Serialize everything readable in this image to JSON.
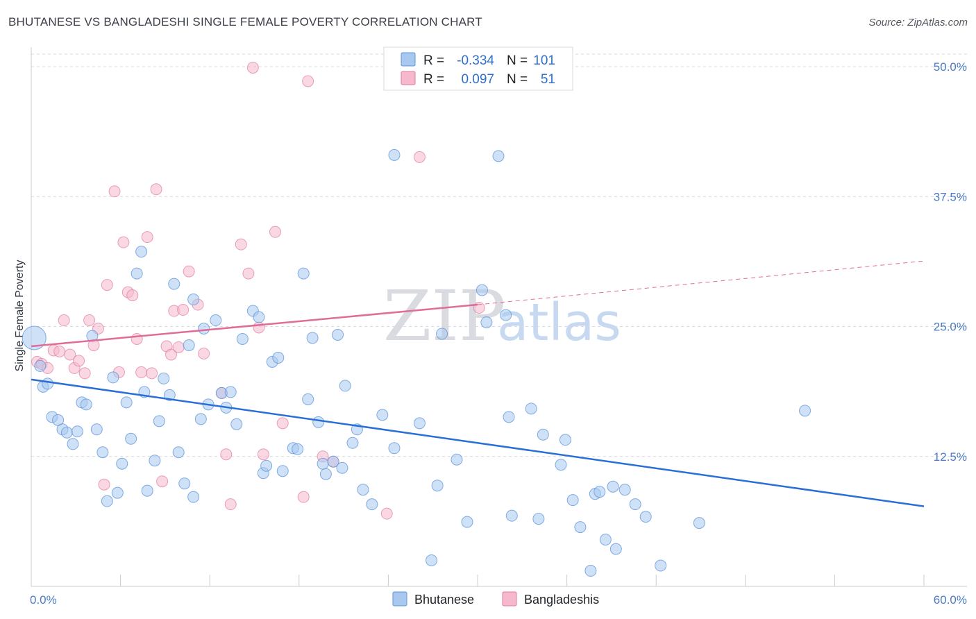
{
  "title": "BHUTANESE VS BANGLADESHI SINGLE FEMALE POVERTY CORRELATION CHART",
  "source": "Source: ZipAtlas.com",
  "watermark": {
    "part1": "ZIP",
    "part2": "atlas"
  },
  "legend": {
    "r_label": "R =",
    "n_label": "N =",
    "rows": [
      {
        "r": "-0.334",
        "n": "101",
        "color": "#a8c8f0"
      },
      {
        "r": "0.097",
        "n": "51",
        "color": "#f5b8cc"
      }
    ]
  },
  "bottom_legend": [
    "Bhutanese",
    "Bangladeshis"
  ],
  "colors": {
    "blue_fill": "#a8c8f0",
    "blue_stroke": "#5b93d8",
    "blue_line": "#2a6fd6",
    "pink_fill": "#f5b8cc",
    "pink_stroke": "#e07aa0",
    "pink_line": "#e06c98",
    "tick": "#4a7cc7",
    "grid": "#d5d8dd"
  },
  "chart_data": {
    "type": "scatter",
    "title": "BHUTANESE VS BANGLADESHI SINGLE FEMALE POVERTY CORRELATION CHART",
    "xlabel": "",
    "ylabel": "Single Female Poverty",
    "xlim": [
      0,
      60
    ],
    "ylim": [
      0,
      50
    ],
    "x_ticks": [
      "0.0%",
      "60.0%"
    ],
    "y_ticks": [
      "12.5%",
      "25.0%",
      "37.5%",
      "50.0%"
    ],
    "y_tick_values": [
      12.5,
      25.0,
      37.5,
      50.0
    ],
    "grid": true,
    "legend_position": "top-center",
    "series": [
      {
        "name": "Bhutanese",
        "r": -0.334,
        "n": 101,
        "trend": {
          "x": [
            0,
            60
          ],
          "y": [
            19.9,
            7.7
          ]
        },
        "points": [
          [
            0.2,
            23.9
          ],
          [
            0.6,
            21.2
          ],
          [
            0.8,
            19.2
          ],
          [
            1.1,
            19.5
          ],
          [
            1.4,
            16.3
          ],
          [
            1.8,
            16.0
          ],
          [
            2.1,
            15.1
          ],
          [
            2.4,
            14.8
          ],
          [
            2.8,
            13.7
          ],
          [
            3.1,
            14.9
          ],
          [
            3.4,
            17.7
          ],
          [
            3.7,
            17.5
          ],
          [
            4.1,
            24.1
          ],
          [
            4.4,
            15.1
          ],
          [
            4.8,
            12.9
          ],
          [
            5.1,
            8.2
          ],
          [
            5.5,
            20.1
          ],
          [
            5.8,
            9.0
          ],
          [
            6.1,
            11.8
          ],
          [
            6.4,
            17.7
          ],
          [
            6.7,
            14.2
          ],
          [
            7.1,
            30.1
          ],
          [
            7.4,
            32.2
          ],
          [
            7.6,
            18.7
          ],
          [
            7.8,
            9.2
          ],
          [
            8.3,
            12.1
          ],
          [
            8.6,
            15.9
          ],
          [
            8.9,
            20.0
          ],
          [
            9.3,
            18.4
          ],
          [
            9.6,
            29.1
          ],
          [
            9.9,
            12.9
          ],
          [
            10.3,
            9.9
          ],
          [
            10.6,
            23.2
          ],
          [
            10.9,
            27.6
          ],
          [
            10.9,
            8.6
          ],
          [
            11.4,
            16.1
          ],
          [
            11.6,
            24.8
          ],
          [
            11.9,
            17.5
          ],
          [
            12.4,
            25.6
          ],
          [
            12.8,
            18.6
          ],
          [
            13.1,
            17.2
          ],
          [
            13.4,
            18.7
          ],
          [
            13.8,
            15.6
          ],
          [
            14.2,
            23.8
          ],
          [
            14.9,
            26.5
          ],
          [
            15.3,
            25.9
          ],
          [
            15.6,
            10.9
          ],
          [
            15.8,
            11.6
          ],
          [
            16.2,
            21.6
          ],
          [
            16.6,
            22.0
          ],
          [
            16.9,
            11.1
          ],
          [
            17.6,
            13.3
          ],
          [
            17.9,
            13.2
          ],
          [
            18.3,
            30.1
          ],
          [
            18.6,
            18.0
          ],
          [
            18.9,
            23.9
          ],
          [
            19.3,
            15.8
          ],
          [
            19.6,
            11.8
          ],
          [
            19.8,
            10.8
          ],
          [
            20.3,
            12.0
          ],
          [
            20.6,
            24.2
          ],
          [
            20.9,
            11.4
          ],
          [
            21.1,
            19.3
          ],
          [
            21.6,
            13.8
          ],
          [
            21.9,
            15.1
          ],
          [
            22.3,
            9.3
          ],
          [
            22.9,
            7.9
          ],
          [
            23.6,
            16.5
          ],
          [
            24.4,
            13.3
          ],
          [
            24.4,
            41.5
          ],
          [
            26.1,
            15.7
          ],
          [
            26.9,
            2.5
          ],
          [
            27.3,
            9.7
          ],
          [
            27.6,
            24.3
          ],
          [
            28.6,
            12.2
          ],
          [
            29.3,
            6.2
          ],
          [
            30.3,
            28.5
          ],
          [
            30.6,
            25.4
          ],
          [
            31.4,
            41.4
          ],
          [
            31.9,
            26.1
          ],
          [
            32.1,
            16.3
          ],
          [
            32.3,
            6.8
          ],
          [
            33.6,
            17.1
          ],
          [
            34.1,
            6.5
          ],
          [
            34.4,
            14.6
          ],
          [
            35.6,
            11.7
          ],
          [
            35.9,
            14.1
          ],
          [
            36.4,
            8.3
          ],
          [
            36.9,
            5.7
          ],
          [
            37.6,
            1.5
          ],
          [
            37.9,
            8.9
          ],
          [
            38.2,
            9.1
          ],
          [
            38.6,
            4.5
          ],
          [
            39.1,
            9.6
          ],
          [
            39.3,
            3.6
          ],
          [
            39.9,
            9.3
          ],
          [
            40.6,
            7.9
          ],
          [
            41.3,
            6.7
          ],
          [
            42.3,
            2.0
          ],
          [
            44.9,
            6.1
          ],
          [
            52.0,
            16.9
          ]
        ]
      },
      {
        "name": "Bangladeshis",
        "r": 0.097,
        "n": 51,
        "trend_solid": {
          "x": [
            0,
            30
          ],
          "y": [
            23.1,
            27.1
          ]
        },
        "trend_dashed": {
          "x": [
            30,
            60
          ],
          "y": [
            27.1,
            31.3
          ]
        },
        "points": [
          [
            0.4,
            21.6
          ],
          [
            0.7,
            21.4
          ],
          [
            1.1,
            21.0
          ],
          [
            1.5,
            22.7
          ],
          [
            1.9,
            22.6
          ],
          [
            2.2,
            25.6
          ],
          [
            2.6,
            22.3
          ],
          [
            2.9,
            21.0
          ],
          [
            3.2,
            21.7
          ],
          [
            3.6,
            20.5
          ],
          [
            3.9,
            25.6
          ],
          [
            4.2,
            23.2
          ],
          [
            4.5,
            24.8
          ],
          [
            4.9,
            9.8
          ],
          [
            5.1,
            29.0
          ],
          [
            5.6,
            38.0
          ],
          [
            5.9,
            20.6
          ],
          [
            6.2,
            33.1
          ],
          [
            6.5,
            28.3
          ],
          [
            6.8,
            28.0
          ],
          [
            7.1,
            23.8
          ],
          [
            7.4,
            20.6
          ],
          [
            7.8,
            33.6
          ],
          [
            8.1,
            20.5
          ],
          [
            8.4,
            38.2
          ],
          [
            8.8,
            10.1
          ],
          [
            9.1,
            23.1
          ],
          [
            9.4,
            22.3
          ],
          [
            9.6,
            26.5
          ],
          [
            9.9,
            23.0
          ],
          [
            10.2,
            26.6
          ],
          [
            10.6,
            30.3
          ],
          [
            11.2,
            27.1
          ],
          [
            11.6,
            22.4
          ],
          [
            12.8,
            18.6
          ],
          [
            13.1,
            12.7
          ],
          [
            13.4,
            7.9
          ],
          [
            14.1,
            32.9
          ],
          [
            14.6,
            30.1
          ],
          [
            14.9,
            49.9
          ],
          [
            15.3,
            24.9
          ],
          [
            15.6,
            12.7
          ],
          [
            16.4,
            34.1
          ],
          [
            16.9,
            15.7
          ],
          [
            18.3,
            8.6
          ],
          [
            18.6,
            48.6
          ],
          [
            19.6,
            12.5
          ],
          [
            20.3,
            12.0
          ],
          [
            23.9,
            7.0
          ],
          [
            26.1,
            41.3
          ],
          [
            30.1,
            26.8
          ]
        ]
      }
    ]
  }
}
